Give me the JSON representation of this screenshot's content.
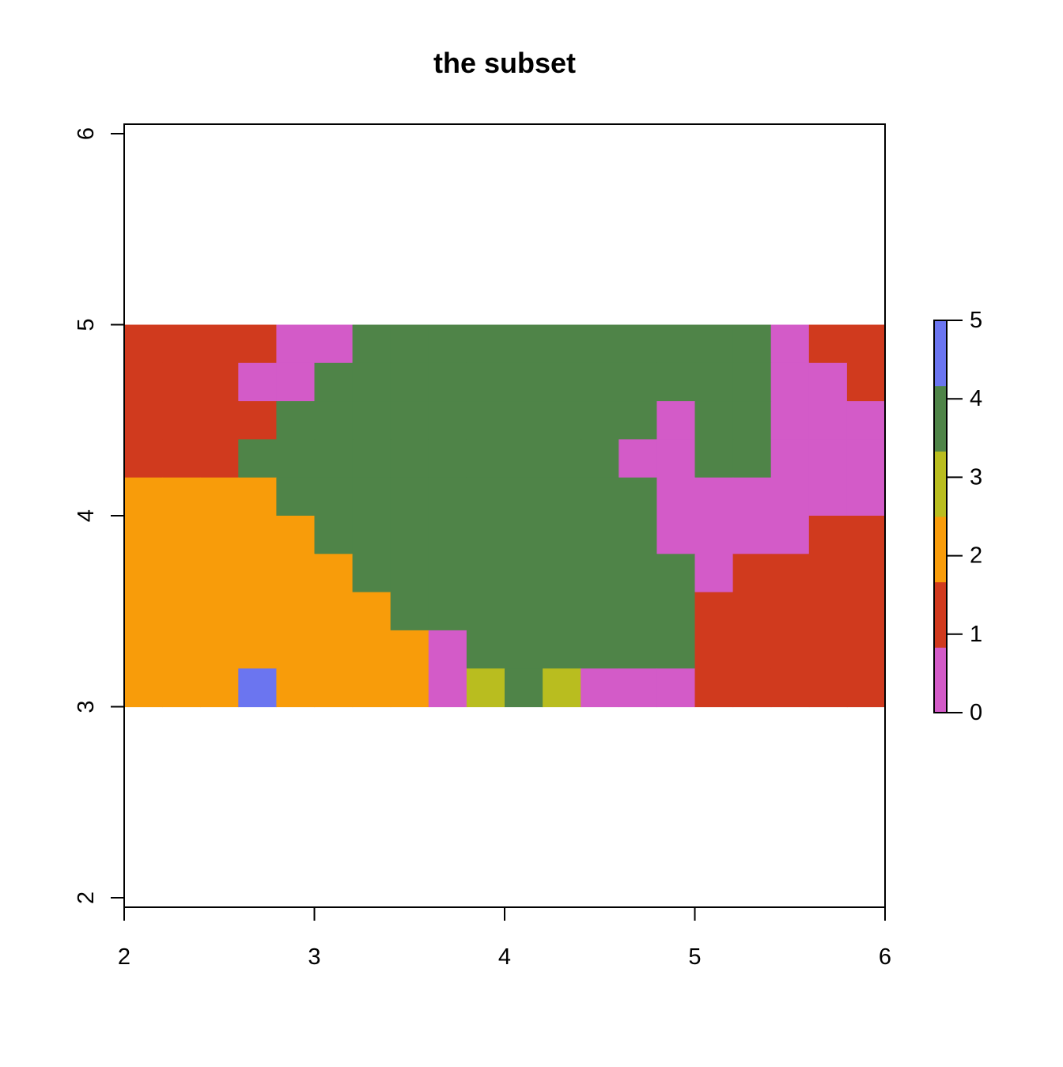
{
  "chart_data": {
    "type": "heatmap",
    "title": "the subset",
    "xlabel": "",
    "ylabel": "",
    "xlim": [
      2,
      6
    ],
    "ylim": [
      2,
      6
    ],
    "x_ticks": [
      2,
      3,
      4,
      5,
      6
    ],
    "y_ticks": [
      2,
      3,
      4,
      5,
      6
    ],
    "grid": false,
    "raster": {
      "x_range": [
        2,
        6
      ],
      "y_range": [
        3,
        5
      ],
      "rows_top_to_bottom": [
        "11110044444444444011",
        "11100444444444444001",
        "11114444444444044000",
        "11144444444440044000",
        "22224444444444000000",
        "22222444444444000011",
        "22222244444444401111",
        "22222224444444411111",
        "22222222044444411111",
        "22252222034300011111"
      ]
    },
    "legend": {
      "placement": "right",
      "ticks": [
        0,
        1,
        2,
        3,
        4,
        5
      ]
    },
    "class_colors": {
      "0": "#d35bc8",
      "1": "#d03a1e",
      "2": "#f89c0a",
      "3": "#b9bd1f",
      "4": "#4f8448",
      "5": "#6b75f0"
    },
    "legend_colors_bottom_to_top": [
      "#d35bc8",
      "#d03a1e",
      "#f89c0a",
      "#b9bd1f",
      "#4f8448",
      "#6b75f0"
    ]
  }
}
